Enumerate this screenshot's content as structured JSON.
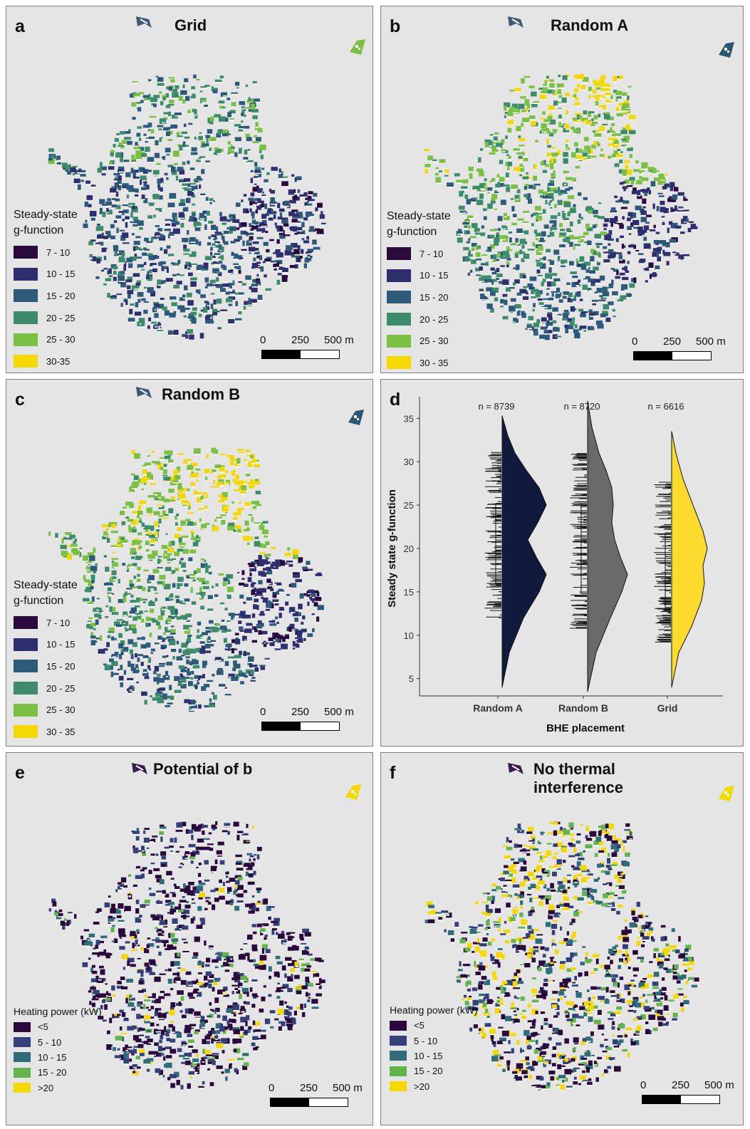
{
  "panels": {
    "a": {
      "label": "a",
      "title": "Grid",
      "arrow_color": "#3b5a78",
      "inset_color": "#7ac143"
    },
    "b": {
      "label": "b",
      "title": "Random A",
      "arrow_color": "#3b5a78",
      "inset_color": "#2c5774"
    },
    "c": {
      "label": "c",
      "title": "Random B",
      "arrow_color": "#3b5a78",
      "inset_color": "#2c5774"
    },
    "d": {
      "label": "d"
    },
    "e": {
      "label": "e",
      "title": "Potential of b",
      "arrow_color": "#3a1b4f",
      "inset_color": "#f5d800"
    },
    "f": {
      "label": "f",
      "title": "No thermal\ninterference",
      "arrow_color": "#3a1b4f",
      "inset_color": "#f5d800"
    }
  },
  "legend_g": {
    "title": "Steady-state\ng-function",
    "items_a": [
      {
        "label": "7 - 10",
        "color": "#2a0a3c"
      },
      {
        "label": "10 - 15",
        "color": "#2f2f6f"
      },
      {
        "label": "15 - 20",
        "color": "#2e5a7a"
      },
      {
        "label": "20 - 25",
        "color": "#3c8c6c"
      },
      {
        "label": "25 - 30",
        "color": "#7ac143"
      },
      {
        "label": "30-35",
        "color": "#f5d800"
      }
    ],
    "items_bc": [
      {
        "label": "7 - 10",
        "color": "#2a0a3c"
      },
      {
        "label": "10 - 15",
        "color": "#2f2f6f"
      },
      {
        "label": "15 - 20",
        "color": "#2e5a7a"
      },
      {
        "label": "20 - 25",
        "color": "#3c8c6c"
      },
      {
        "label": "25 - 30",
        "color": "#7ac143"
      },
      {
        "label": "30 - 35",
        "color": "#f5d800"
      }
    ]
  },
  "legend_power": {
    "title": "Heating power (kW)",
    "items": [
      {
        "label": "<5",
        "color": "#2a0a3c"
      },
      {
        "label": "5 - 10",
        "color": "#34407a"
      },
      {
        "label": "10 - 15",
        "color": "#2f6d7a"
      },
      {
        "label": "15 - 20",
        "color": "#62b54a"
      },
      {
        "label": ">20",
        "color": "#f5d800"
      }
    ]
  },
  "scalebar": {
    "l0": "0",
    "l1": "250",
    "l2": "500 m"
  },
  "chart_data": {
    "type": "violin",
    "xlabel": "BHE placement",
    "ylabel": "Steady state g-function",
    "ylim": [
      3,
      37
    ],
    "yticks": [
      5,
      10,
      15,
      20,
      25,
      30,
      35
    ],
    "grid": false,
    "groups": [
      {
        "name": "Random A",
        "n_label": "n = 8739",
        "color": "#101a3c",
        "median": 19.8,
        "q1": 16.0,
        "q3": 25.2,
        "min": 4.0,
        "max": 35.3
      },
      {
        "name": "Random B",
        "n_label": "n = 8720",
        "color": "#6a6a6a",
        "median": 18.2,
        "q1": 14.8,
        "q3": 25.0,
        "min": 3.5,
        "max": 37.0
      },
      {
        "name": "Grid",
        "n_label": "n = 6616",
        "color": "#fddb2c",
        "median": 17.5,
        "q1": 13.2,
        "q3": 21.8,
        "min": 4.0,
        "max": 33.5
      }
    ]
  }
}
